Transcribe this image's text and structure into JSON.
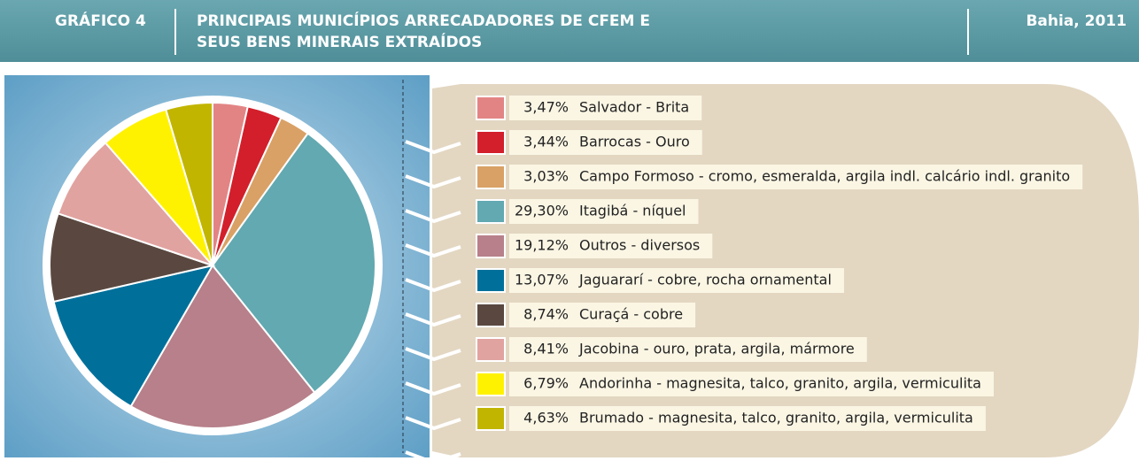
{
  "chart_data": {
    "type": "pie",
    "label": "GRÁFICO 4",
    "title": [
      "PRINCIPAIS MUNICÍPIOS ARRECADADORES DE CFEM E",
      "SEUS BENS MINERAIS EXTRAÍDOS"
    ],
    "subtitle": "Bahia, 2011",
    "categories": [
      "Salvador - Brita",
      "Barrocas - Ouro",
      "Campo Formoso - cromo, esmeralda, argila indl. calcário indl. granito",
      "Itagibá - níquel",
      "Outros - diversos",
      "Jaguararí - cobre, rocha ornamental",
      "Curaçá - cobre",
      "Jacobina - ouro, prata, argila, mármore",
      "Andorinha - magnesita, talco, granito, argila, vermiculita",
      "Brumado - magnesita, talco, granito, argila, vermiculita"
    ],
    "values": [
      3.47,
      3.44,
      3.03,
      29.3,
      19.12,
      13.07,
      8.74,
      8.41,
      6.79,
      4.63
    ],
    "value_labels": [
      "3,47%",
      "3,44%",
      "3,03%",
      "29,30%",
      "19,12%",
      "13,07%",
      "8,74%",
      "8,41%",
      "6,79%",
      "4,63%"
    ],
    "colors": [
      "#e38484",
      "#d21f2b",
      "#d9a165",
      "#62a9b1",
      "#b7808a",
      "#00709b",
      "#5a4840",
      "#e1a3a0",
      "#fff200",
      "#c2b500"
    ]
  }
}
